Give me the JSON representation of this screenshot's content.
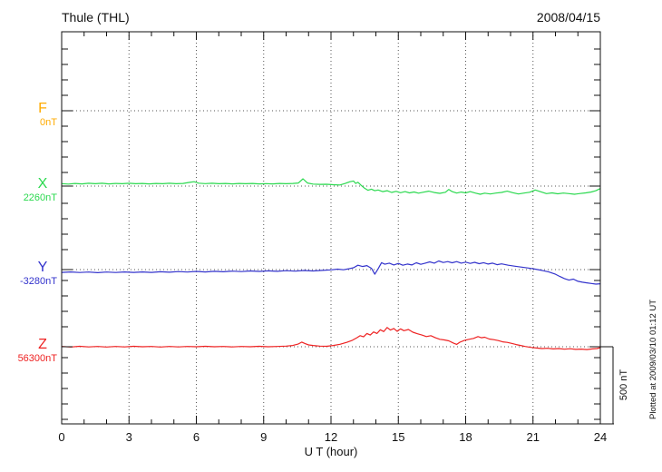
{
  "header": {
    "title": "Thule (THL)",
    "date": "2008/04/15"
  },
  "footer_note": "Plotted at 2009/03/10 01:12 UT",
  "chart_data": {
    "type": "line",
    "title": "Thule (THL)",
    "date": "2008/04/15",
    "xlabel": "U T (hour)",
    "x_range": [
      0,
      24
    ],
    "x_ticks": [
      0,
      3,
      6,
      9,
      12,
      15,
      18,
      21,
      24
    ],
    "x_minor_step_hours": 1,
    "scale_bar_label": "500 nT",
    "scale_bar_nT": 500,
    "grid": {
      "vertical_hours": [
        3,
        6,
        9,
        12,
        15,
        18,
        21,
        24
      ],
      "style": "dotted",
      "horizontal": "one dotted baseline per component"
    },
    "legend_position": "left-of-axis",
    "series": [
      {
        "name": "F",
        "color": "#FFAB00",
        "baseline_label": "0nT",
        "baseline_nT": 0,
        "points": []
      },
      {
        "name": "X",
        "color": "#2BD94F",
        "baseline_label": "2260nT",
        "baseline_nT": 2260,
        "points": [
          [
            0,
            16
          ],
          [
            0.3,
            13
          ],
          [
            0.6,
            17
          ],
          [
            0.9,
            14
          ],
          [
            1.2,
            18
          ],
          [
            1.5,
            15
          ],
          [
            1.8,
            18
          ],
          [
            2.1,
            14
          ],
          [
            2.4,
            17
          ],
          [
            2.7,
            15
          ],
          [
            3,
            18
          ],
          [
            3.3,
            15
          ],
          [
            3.6,
            17
          ],
          [
            3.9,
            14
          ],
          [
            4.2,
            17
          ],
          [
            4.5,
            15
          ],
          [
            4.8,
            18
          ],
          [
            5.1,
            15
          ],
          [
            5.4,
            17
          ],
          [
            5.7,
            24
          ],
          [
            5.9,
            28
          ],
          [
            6.1,
            19
          ],
          [
            6.4,
            16
          ],
          [
            6.7,
            18
          ],
          [
            7,
            15
          ],
          [
            7.3,
            17
          ],
          [
            7.6,
            14
          ],
          [
            7.9,
            17
          ],
          [
            8.2,
            15
          ],
          [
            8.5,
            17
          ],
          [
            8.8,
            14
          ],
          [
            9.1,
            16
          ],
          [
            9.4,
            14
          ],
          [
            9.7,
            17
          ],
          [
            10,
            15
          ],
          [
            10.3,
            17
          ],
          [
            10.55,
            20
          ],
          [
            10.75,
            47
          ],
          [
            10.95,
            20
          ],
          [
            11.2,
            13
          ],
          [
            11.5,
            11
          ],
          [
            11.8,
            12
          ],
          [
            12.1,
            9
          ],
          [
            12.4,
            7
          ],
          [
            12.65,
            18
          ],
          [
            12.85,
            28
          ],
          [
            13,
            33
          ],
          [
            13.1,
            17
          ],
          [
            13.2,
            25
          ],
          [
            13.35,
            4
          ],
          [
            13.5,
            -14
          ],
          [
            13.65,
            -27
          ],
          [
            13.8,
            -20
          ],
          [
            13.95,
            -30
          ],
          [
            14.1,
            -25
          ],
          [
            14.3,
            -36
          ],
          [
            14.5,
            -30
          ],
          [
            14.7,
            -41
          ],
          [
            14.9,
            -34
          ],
          [
            15.1,
            -43
          ],
          [
            15.3,
            -36
          ],
          [
            15.5,
            -44
          ],
          [
            15.7,
            -38
          ],
          [
            15.9,
            -46
          ],
          [
            16.1,
            -40
          ],
          [
            16.35,
            -33
          ],
          [
            16.6,
            -42
          ],
          [
            16.85,
            -47
          ],
          [
            17.1,
            -40
          ],
          [
            17.25,
            -22
          ],
          [
            17.4,
            -36
          ],
          [
            17.6,
            -45
          ],
          [
            17.8,
            -39
          ],
          [
            18,
            -44
          ],
          [
            18.2,
            -36
          ],
          [
            18.45,
            -46
          ],
          [
            18.65,
            -53
          ],
          [
            18.85,
            -46
          ],
          [
            19.1,
            -51
          ],
          [
            19.35,
            -45
          ],
          [
            19.6,
            -41
          ],
          [
            19.85,
            -33
          ],
          [
            20.1,
            -43
          ],
          [
            20.35,
            -51
          ],
          [
            20.6,
            -45
          ],
          [
            20.85,
            -40
          ],
          [
            21.1,
            -25
          ],
          [
            21.35,
            -37
          ],
          [
            21.6,
            -49
          ],
          [
            21.85,
            -44
          ],
          [
            22.1,
            -50
          ],
          [
            22.35,
            -45
          ],
          [
            22.6,
            -49
          ],
          [
            22.85,
            -53
          ],
          [
            23.1,
            -48
          ],
          [
            23.35,
            -44
          ],
          [
            23.6,
            -38
          ],
          [
            23.8,
            -30
          ],
          [
            24,
            -16
          ]
        ]
      },
      {
        "name": "Y",
        "color": "#3333CC",
        "baseline_label": "-3280nT",
        "baseline_nT": -3280,
        "points": [
          [
            0,
            -18
          ],
          [
            0.4,
            -15
          ],
          [
            0.8,
            -19
          ],
          [
            1.2,
            -16
          ],
          [
            1.6,
            -20
          ],
          [
            2,
            -16
          ],
          [
            2.4,
            -19
          ],
          [
            2.8,
            -15
          ],
          [
            3.2,
            -18
          ],
          [
            3.6,
            -15
          ],
          [
            4,
            -18
          ],
          [
            4.4,
            -14
          ],
          [
            4.8,
            -17
          ],
          [
            5.2,
            -13
          ],
          [
            5.6,
            -16
          ],
          [
            6,
            -12
          ],
          [
            6.4,
            -15
          ],
          [
            6.8,
            -11
          ],
          [
            7.2,
            -14
          ],
          [
            7.6,
            -10
          ],
          [
            8,
            -13
          ],
          [
            8.4,
            -9
          ],
          [
            8.8,
            -12
          ],
          [
            9.2,
            -8
          ],
          [
            9.6,
            -11
          ],
          [
            10,
            -7
          ],
          [
            10.4,
            -10
          ],
          [
            10.8,
            -6
          ],
          [
            11.2,
            -9
          ],
          [
            11.6,
            -5
          ],
          [
            12,
            -2
          ],
          [
            12.3,
            3
          ],
          [
            12.55,
            -1
          ],
          [
            12.8,
            5
          ],
          [
            13,
            12
          ],
          [
            13.2,
            28
          ],
          [
            13.4,
            20
          ],
          [
            13.6,
            26
          ],
          [
            13.8,
            8
          ],
          [
            13.95,
            -30
          ],
          [
            14.1,
            5
          ],
          [
            14.25,
            45
          ],
          [
            14.4,
            35
          ],
          [
            14.6,
            42
          ],
          [
            14.8,
            30
          ],
          [
            15,
            40
          ],
          [
            15.2,
            28
          ],
          [
            15.4,
            36
          ],
          [
            15.6,
            30
          ],
          [
            15.8,
            44
          ],
          [
            16,
            34
          ],
          [
            16.2,
            42
          ],
          [
            16.4,
            50
          ],
          [
            16.6,
            42
          ],
          [
            16.8,
            56
          ],
          [
            17,
            46
          ],
          [
            17.2,
            52
          ],
          [
            17.4,
            44
          ],
          [
            17.6,
            52
          ],
          [
            17.8,
            42
          ],
          [
            18,
            48
          ],
          [
            18.2,
            40
          ],
          [
            18.4,
            47
          ],
          [
            18.6,
            38
          ],
          [
            18.8,
            45
          ],
          [
            19,
            36
          ],
          [
            19.2,
            42
          ],
          [
            19.4,
            32
          ],
          [
            19.6,
            37
          ],
          [
            19.9,
            28
          ],
          [
            20.2,
            22
          ],
          [
            20.5,
            16
          ],
          [
            20.8,
            10
          ],
          [
            21.1,
            3
          ],
          [
            21.4,
            -5
          ],
          [
            21.7,
            -15
          ],
          [
            22,
            -30
          ],
          [
            22.2,
            -45
          ],
          [
            22.4,
            -58
          ],
          [
            22.6,
            -68
          ],
          [
            22.8,
            -62
          ],
          [
            23,
            -76
          ],
          [
            23.2,
            -82
          ],
          [
            23.4,
            -86
          ],
          [
            23.6,
            -90
          ],
          [
            23.8,
            -94
          ],
          [
            24,
            -92
          ]
        ]
      },
      {
        "name": "Z",
        "color": "#EE2222",
        "baseline_label": "56300nT",
        "baseline_nT": 56300,
        "points": [
          [
            0,
            2
          ],
          [
            0.4,
            -2
          ],
          [
            0.8,
            3
          ],
          [
            1.2,
            -1
          ],
          [
            1.6,
            2
          ],
          [
            2,
            -2
          ],
          [
            2.4,
            2
          ],
          [
            2.8,
            -1
          ],
          [
            3.2,
            3
          ],
          [
            3.6,
            0
          ],
          [
            4,
            2
          ],
          [
            4.4,
            -2
          ],
          [
            4.8,
            2
          ],
          [
            5.2,
            -1
          ],
          [
            5.6,
            2
          ],
          [
            6,
            0
          ],
          [
            6.4,
            3
          ],
          [
            6.8,
            0
          ],
          [
            7.2,
            2
          ],
          [
            7.6,
            -1
          ],
          [
            8,
            2
          ],
          [
            8.4,
            0
          ],
          [
            8.8,
            3
          ],
          [
            9.2,
            0
          ],
          [
            9.6,
            2
          ],
          [
            10,
            4
          ],
          [
            10.3,
            8
          ],
          [
            10.55,
            18
          ],
          [
            10.7,
            30
          ],
          [
            10.85,
            20
          ],
          [
            11,
            12
          ],
          [
            11.2,
            8
          ],
          [
            11.5,
            4
          ],
          [
            11.8,
            3
          ],
          [
            12.1,
            8
          ],
          [
            12.4,
            16
          ],
          [
            12.7,
            28
          ],
          [
            12.95,
            42
          ],
          [
            13.15,
            58
          ],
          [
            13.3,
            72
          ],
          [
            13.45,
            64
          ],
          [
            13.6,
            86
          ],
          [
            13.75,
            76
          ],
          [
            13.9,
            96
          ],
          [
            14.05,
            86
          ],
          [
            14.2,
            110
          ],
          [
            14.35,
            98
          ],
          [
            14.5,
            125
          ],
          [
            14.65,
            108
          ],
          [
            14.8,
            118
          ],
          [
            14.95,
            100
          ],
          [
            15.1,
            116
          ],
          [
            15.25,
            104
          ],
          [
            15.45,
            112
          ],
          [
            15.65,
            94
          ],
          [
            15.85,
            84
          ],
          [
            16.05,
            76
          ],
          [
            16.25,
            66
          ],
          [
            16.45,
            72
          ],
          [
            16.65,
            58
          ],
          [
            16.85,
            48
          ],
          [
            17.05,
            44
          ],
          [
            17.25,
            38
          ],
          [
            17.45,
            24
          ],
          [
            17.6,
            15
          ],
          [
            17.75,
            30
          ],
          [
            17.95,
            42
          ],
          [
            18.15,
            48
          ],
          [
            18.35,
            54
          ],
          [
            18.55,
            66
          ],
          [
            18.7,
            58
          ],
          [
            18.85,
            62
          ],
          [
            19.05,
            50
          ],
          [
            19.25,
            46
          ],
          [
            19.45,
            40
          ],
          [
            19.65,
            32
          ],
          [
            19.85,
            28
          ],
          [
            20.05,
            22
          ],
          [
            20.25,
            14
          ],
          [
            20.45,
            8
          ],
          [
            20.65,
            2
          ],
          [
            20.9,
            -4
          ],
          [
            21.15,
            -8
          ],
          [
            21.4,
            -12
          ],
          [
            21.65,
            -10
          ],
          [
            21.9,
            -14
          ],
          [
            22.15,
            -12
          ],
          [
            22.4,
            -16
          ],
          [
            22.65,
            -13
          ],
          [
            22.9,
            -17
          ],
          [
            23.15,
            -15
          ],
          [
            23.4,
            -18
          ],
          [
            23.65,
            -14
          ],
          [
            23.85,
            -12
          ],
          [
            24,
            -6
          ]
        ]
      }
    ]
  }
}
